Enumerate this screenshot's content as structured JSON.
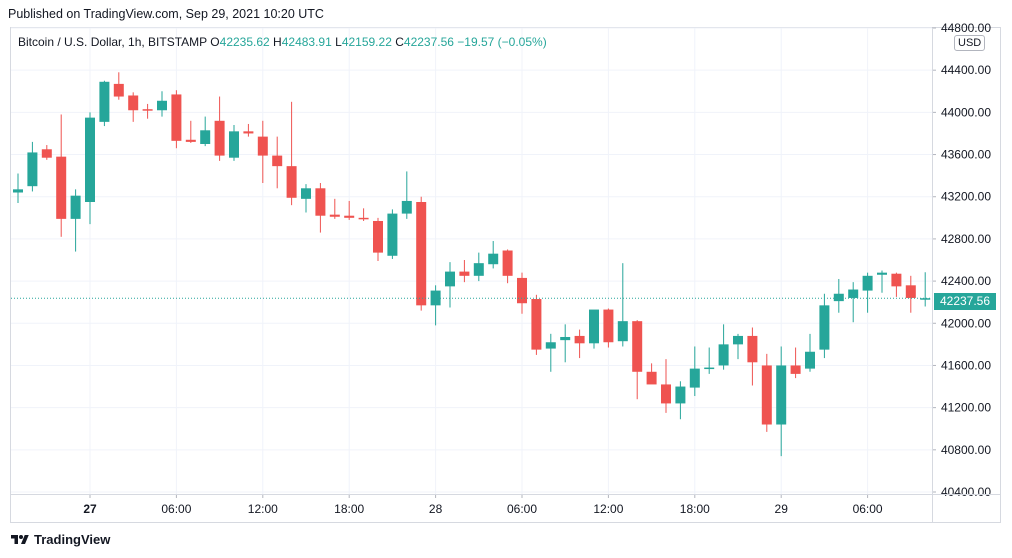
{
  "published": "Published on TradingView.com, Sep 29, 2021 10:20 UTC",
  "legend": {
    "symbol": "Bitcoin / U.S. Dollar, 1h, BITSTAMP",
    "o_label": "O",
    "o_value": "42235.62",
    "h_label": "H",
    "h_value": "42483.91",
    "l_label": "L",
    "l_value": "42159.22",
    "c_label": "C",
    "c_value": "42237.56",
    "change": "−19.57 (−0.05%)"
  },
  "currency": "USD",
  "last_price_label": "42237.56",
  "footer": {
    "brand": "TradingView",
    "logo_icon": "tradingview-logo-icon"
  },
  "colors": {
    "up": "#26a69a",
    "down": "#ef5350",
    "grid": "#f0f3fa",
    "text": "#131722"
  },
  "chart_data": {
    "type": "candlestick",
    "symbol": "Bitcoin / U.S. Dollar, 1h, BITSTAMP",
    "ylim": [
      40400,
      44800
    ],
    "y_ticks": [
      40400,
      40800,
      41200,
      41600,
      42000,
      42400,
      42800,
      43200,
      43600,
      44000,
      44400,
      44800
    ],
    "y_tick_labels": [
      "40400.00",
      "40800.00",
      "41200.00",
      "41600.00",
      "42000.00",
      "42400.00",
      "42800.00",
      "43200.00",
      "43600.00",
      "44000.00",
      "44400.00",
      "44800.00"
    ],
    "x_ticks": [
      {
        "index": 5,
        "label": "27",
        "bold": true
      },
      {
        "index": 11,
        "label": "06:00",
        "bold": false
      },
      {
        "index": 17,
        "label": "12:00",
        "bold": false
      },
      {
        "index": 23,
        "label": "18:00",
        "bold": false
      },
      {
        "index": 29,
        "label": "28",
        "bold": false
      },
      {
        "index": 35,
        "label": "06:00",
        "bold": false
      },
      {
        "index": 41,
        "label": "12:00",
        "bold": false
      },
      {
        "index": 47,
        "label": "18:00",
        "bold": false
      },
      {
        "index": 53,
        "label": "29",
        "bold": false
      },
      {
        "index": 59,
        "label": "06:00",
        "bold": false
      }
    ],
    "last_price": 42237.56,
    "candles": [
      {
        "o": 43240,
        "h": 43420,
        "l": 43140,
        "c": 43270
      },
      {
        "o": 43300,
        "h": 43720,
        "l": 43250,
        "c": 43620
      },
      {
        "o": 43650,
        "h": 43690,
        "l": 43550,
        "c": 43570
      },
      {
        "o": 43580,
        "h": 43980,
        "l": 42820,
        "c": 42990
      },
      {
        "o": 42990,
        "h": 43270,
        "l": 42680,
        "c": 43210
      },
      {
        "o": 43150,
        "h": 44000,
        "l": 42940,
        "c": 43950
      },
      {
        "o": 43910,
        "h": 44300,
        "l": 43870,
        "c": 44290
      },
      {
        "o": 44270,
        "h": 44380,
        "l": 44120,
        "c": 44150
      },
      {
        "o": 44160,
        "h": 44190,
        "l": 43910,
        "c": 44020
      },
      {
        "o": 44030,
        "h": 44080,
        "l": 43940,
        "c": 44020
      },
      {
        "o": 44020,
        "h": 44200,
        "l": 43960,
        "c": 44110
      },
      {
        "o": 44170,
        "h": 44210,
        "l": 43660,
        "c": 43730
      },
      {
        "o": 43740,
        "h": 43920,
        "l": 43710,
        "c": 43720
      },
      {
        "o": 43700,
        "h": 43960,
        "l": 43680,
        "c": 43830
      },
      {
        "o": 43920,
        "h": 44150,
        "l": 43540,
        "c": 43590
      },
      {
        "o": 43570,
        "h": 43880,
        "l": 43540,
        "c": 43820
      },
      {
        "o": 43820,
        "h": 43890,
        "l": 43770,
        "c": 43800
      },
      {
        "o": 43770,
        "h": 43920,
        "l": 43330,
        "c": 43590
      },
      {
        "o": 43590,
        "h": 43770,
        "l": 43280,
        "c": 43490
      },
      {
        "o": 43490,
        "h": 44100,
        "l": 43120,
        "c": 43190
      },
      {
        "o": 43180,
        "h": 43320,
        "l": 43050,
        "c": 43280
      },
      {
        "o": 43280,
        "h": 43330,
        "l": 42860,
        "c": 43020
      },
      {
        "o": 43030,
        "h": 43180,
        "l": 42990,
        "c": 43010
      },
      {
        "o": 43020,
        "h": 43160,
        "l": 42980,
        "c": 43000
      },
      {
        "o": 43000,
        "h": 43090,
        "l": 42970,
        "c": 42990
      },
      {
        "o": 42970,
        "h": 43000,
        "l": 42590,
        "c": 42670
      },
      {
        "o": 42640,
        "h": 43080,
        "l": 42610,
        "c": 43040
      },
      {
        "o": 43040,
        "h": 43440,
        "l": 42990,
        "c": 43160
      },
      {
        "o": 43150,
        "h": 43200,
        "l": 42120,
        "c": 42170
      },
      {
        "o": 42170,
        "h": 42360,
        "l": 41980,
        "c": 42310
      },
      {
        "o": 42350,
        "h": 42580,
        "l": 42150,
        "c": 42490
      },
      {
        "o": 42490,
        "h": 42600,
        "l": 42390,
        "c": 42450
      },
      {
        "o": 42450,
        "h": 42670,
        "l": 42400,
        "c": 42570
      },
      {
        "o": 42560,
        "h": 42780,
        "l": 42520,
        "c": 42660
      },
      {
        "o": 42690,
        "h": 42700,
        "l": 42380,
        "c": 42450
      },
      {
        "o": 42430,
        "h": 42480,
        "l": 42090,
        "c": 42190
      },
      {
        "o": 42230,
        "h": 42270,
        "l": 41700,
        "c": 41750
      },
      {
        "o": 41760,
        "h": 41900,
        "l": 41540,
        "c": 41820
      },
      {
        "o": 41840,
        "h": 41990,
        "l": 41630,
        "c": 41870
      },
      {
        "o": 41880,
        "h": 41940,
        "l": 41670,
        "c": 41810
      },
      {
        "o": 41810,
        "h": 42110,
        "l": 41760,
        "c": 42130
      },
      {
        "o": 42130,
        "h": 42140,
        "l": 41770,
        "c": 41820
      },
      {
        "o": 41830,
        "h": 42570,
        "l": 41780,
        "c": 42020
      },
      {
        "o": 42020,
        "h": 42030,
        "l": 41280,
        "c": 41540
      },
      {
        "o": 41540,
        "h": 41620,
        "l": 41430,
        "c": 41420
      },
      {
        "o": 41420,
        "h": 41660,
        "l": 41150,
        "c": 41240
      },
      {
        "o": 41240,
        "h": 41450,
        "l": 41090,
        "c": 41400
      },
      {
        "o": 41390,
        "h": 41780,
        "l": 41310,
        "c": 41570
      },
      {
        "o": 41570,
        "h": 41770,
        "l": 41520,
        "c": 41580
      },
      {
        "o": 41600,
        "h": 41990,
        "l": 41560,
        "c": 41800
      },
      {
        "o": 41800,
        "h": 41900,
        "l": 41660,
        "c": 41880
      },
      {
        "o": 41880,
        "h": 41960,
        "l": 41410,
        "c": 41630
      },
      {
        "o": 41600,
        "h": 41710,
        "l": 40970,
        "c": 41040
      },
      {
        "o": 41040,
        "h": 41780,
        "l": 40740,
        "c": 41600
      },
      {
        "o": 41600,
        "h": 41770,
        "l": 41480,
        "c": 41520
      },
      {
        "o": 41570,
        "h": 41900,
        "l": 41540,
        "c": 41730
      },
      {
        "o": 41750,
        "h": 42280,
        "l": 41670,
        "c": 42170
      },
      {
        "o": 42210,
        "h": 42420,
        "l": 42100,
        "c": 42280
      },
      {
        "o": 42240,
        "h": 42390,
        "l": 42010,
        "c": 42320
      },
      {
        "o": 42310,
        "h": 42480,
        "l": 42100,
        "c": 42450
      },
      {
        "o": 42460,
        "h": 42500,
        "l": 42290,
        "c": 42480
      },
      {
        "o": 42470,
        "h": 42480,
        "l": 42250,
        "c": 42350
      },
      {
        "o": 42360,
        "h": 42450,
        "l": 42100,
        "c": 42240
      },
      {
        "o": 42235.62,
        "h": 42483.91,
        "l": 42159.22,
        "c": 42237.56
      }
    ]
  }
}
